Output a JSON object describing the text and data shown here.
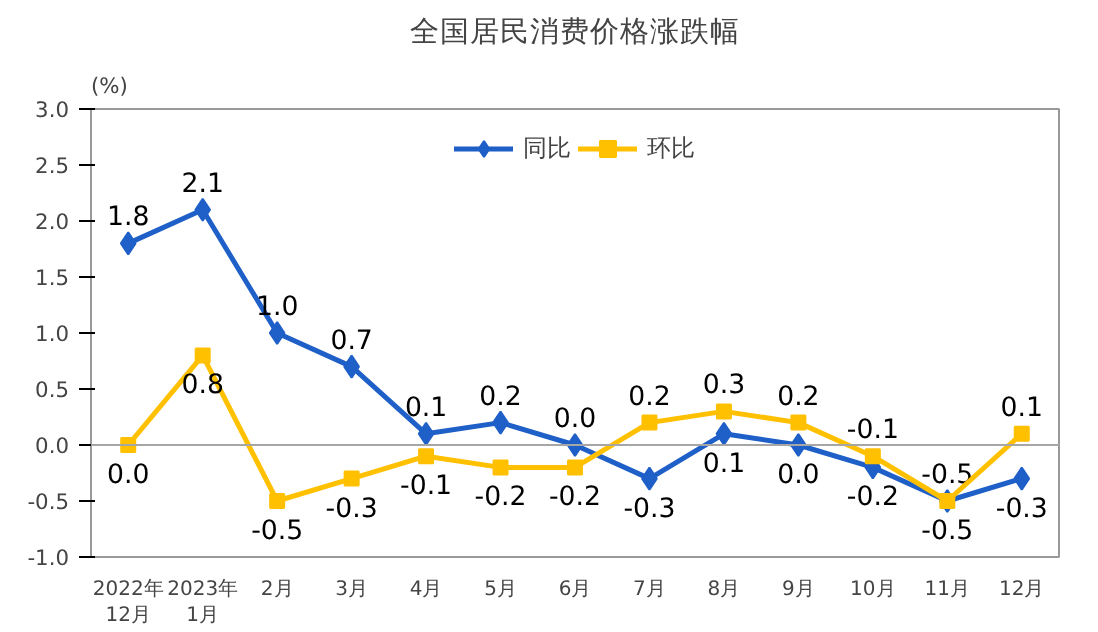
{
  "chart_data": {
    "type": "line",
    "title": "全国居民消费价格涨跌幅",
    "ylabel": "(%)",
    "categories": [
      "2022年\n12月",
      "2023年\n1月",
      "2月",
      "3月",
      "4月",
      "5月",
      "6月",
      "7月",
      "8月",
      "9月",
      "10月",
      "11月",
      "12月"
    ],
    "series": [
      {
        "name": "同比",
        "color": "#1f5fc8",
        "marker": "diamond",
        "values": [
          1.8,
          2.1,
          1.0,
          0.7,
          0.1,
          0.2,
          0.0,
          -0.3,
          0.1,
          0.0,
          -0.2,
          -0.5,
          -0.3
        ],
        "value_labels": [
          "1.8",
          "2.1",
          "1.0",
          "0.7",
          "0.1",
          "0.2",
          "0.0",
          "-0.3",
          "0.1",
          "0.0",
          "-0.2",
          "-0.5",
          "-0.3"
        ]
      },
      {
        "name": "环比",
        "color": "#ffc000",
        "marker": "square",
        "values": [
          0.0,
          0.8,
          -0.5,
          -0.3,
          -0.1,
          -0.2,
          -0.2,
          0.2,
          0.3,
          0.2,
          -0.1,
          -0.5,
          0.1
        ],
        "value_labels": [
          "0.0",
          "0.8",
          "-0.5",
          "-0.3",
          "-0.1",
          "-0.2",
          "-0.2",
          "0.2",
          "0.3",
          "0.2",
          "-0.1",
          "-0.5",
          "0.1"
        ]
      }
    ],
    "ylim": [
      -1.0,
      3.0
    ],
    "yticks": [
      {
        "value": -1.0,
        "label": "-1.0"
      },
      {
        "value": -0.5,
        "label": "-0.5"
      },
      {
        "value": 0,
        "label": "0.0"
      },
      {
        "value": 0.5,
        "label": "0.5"
      },
      {
        "value": 1,
        "label": "1.0"
      },
      {
        "value": 1.5,
        "label": "1.5"
      },
      {
        "value": 2,
        "label": "2.0"
      },
      {
        "value": 2.5,
        "label": "2.5"
      },
      {
        "value": 3,
        "label": "3.0"
      }
    ],
    "ref_lines": [
      {
        "axis": "y",
        "value": 0,
        "color": "#a6a6a6"
      }
    ],
    "legend": "top",
    "line_style": "solid"
  }
}
